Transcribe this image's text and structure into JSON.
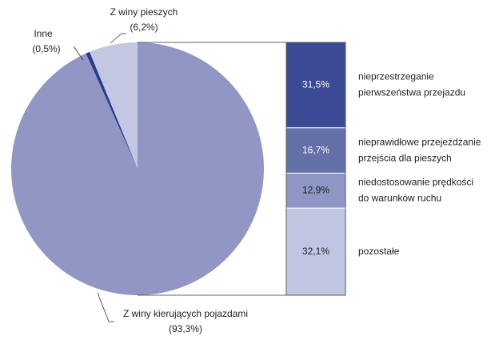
{
  "chart_data": {
    "type": "pie",
    "categories": [
      "Z winy pieszych",
      "Inne",
      "Z winy kierujących pojazdami"
    ],
    "values": [
      6.2,
      0.5,
      93.3
    ],
    "value_labels": [
      "(6,2%)",
      "(0,5%)",
      "(93,3%)"
    ],
    "colors": [
      "#c3c7e2",
      "#2a3b8a",
      "#9196c4"
    ],
    "breakdown": {
      "type": "bar",
      "stacked": true,
      "categories": [
        [
          "nieprzestrzeganie",
          "pierwszeństwa przejazdu"
        ],
        [
          "nieprawidłowe przejeżdżanie",
          "przejścia dla pieszych"
        ],
        [
          "niedostosowanie prędkości",
          "do warunków ruchu"
        ],
        [
          "pozostałe"
        ]
      ],
      "values": [
        31.5,
        16.7,
        12.9,
        32.1
      ],
      "value_labels": [
        "31,5%",
        "16,7%",
        "12,9%",
        "32,1%"
      ],
      "colors": [
        "#3a4a94",
        "#6470a8",
        "#8d96c4",
        "#c0c5e1"
      ]
    }
  }
}
